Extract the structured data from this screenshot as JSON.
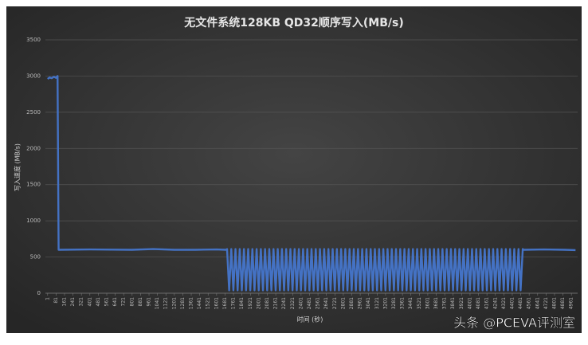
{
  "chart_data": {
    "type": "line",
    "title": "无文件系统128KB QD32顺序写入(MB/s)",
    "y_label": "写入速度 (MB/s)",
    "x_label": "时间 (秒)",
    "watermark": "头条 @PCEVA评测室",
    "color": "#4472c4",
    "grid": true,
    "xlim": [
      -20,
      5020
    ],
    "ylim": [
      0,
      3500
    ],
    "yticks": [
      0,
      500,
      1000,
      1500,
      2000,
      2500,
      3000,
      3500
    ],
    "xticks": [
      1,
      81,
      161,
      241,
      321,
      401,
      481,
      561,
      641,
      721,
      801,
      881,
      961,
      1041,
      1121,
      1201,
      1281,
      1361,
      1441,
      1521,
      1601,
      1681,
      1761,
      1841,
      1921,
      2001,
      2081,
      2161,
      2241,
      2321,
      2401,
      2481,
      2561,
      2641,
      2721,
      2801,
      2881,
      2961,
      3041,
      3121,
      3201,
      3281,
      3361,
      3441,
      3521,
      3601,
      3681,
      3761,
      3841,
      3921,
      4001,
      4081,
      4161,
      4241,
      4321,
      4401,
      4481,
      4561,
      4641,
      4721,
      4801,
      4881,
      4961
    ],
    "x": [
      1,
      20,
      40,
      60,
      80,
      95,
      105,
      400,
      800,
      1000,
      1200,
      1400,
      1600,
      1690,
      1700,
      1720,
      1740,
      1760,
      1780,
      1800,
      1820,
      1840,
      1860,
      1880,
      1900,
      1920,
      1940,
      1960,
      1980,
      2000,
      2020,
      2040,
      2060,
      2080,
      2100,
      2120,
      2140,
      2160,
      2180,
      2200,
      2220,
      2240,
      2260,
      2280,
      2300,
      2320,
      2340,
      2360,
      2380,
      2400,
      2420,
      2440,
      2460,
      2480,
      2500,
      2520,
      2540,
      2560,
      2580,
      2600,
      2620,
      2640,
      2660,
      2680,
      2700,
      2720,
      2740,
      2760,
      2780,
      2800,
      2820,
      2840,
      2860,
      2880,
      2900,
      2920,
      2940,
      2960,
      2980,
      3000,
      3020,
      3040,
      3060,
      3080,
      3100,
      3120,
      3140,
      3160,
      3180,
      3200,
      3220,
      3240,
      3260,
      3280,
      3300,
      3320,
      3340,
      3360,
      3380,
      3400,
      3420,
      3440,
      3460,
      3480,
      3500,
      3520,
      3540,
      3560,
      3580,
      3600,
      3620,
      3640,
      3660,
      3680,
      3700,
      3720,
      3740,
      3760,
      3780,
      3800,
      3820,
      3840,
      3860,
      3880,
      3900,
      3920,
      3940,
      3960,
      3980,
      4000,
      4020,
      4040,
      4060,
      4080,
      4100,
      4120,
      4140,
      4160,
      4180,
      4200,
      4220,
      4240,
      4260,
      4280,
      4300,
      4320,
      4340,
      4360,
      4380,
      4400,
      4420,
      4440,
      4460,
      4480,
      4500,
      4510,
      4700,
      4900,
      5000
    ],
    "values": [
      2960,
      2980,
      2970,
      2990,
      2975,
      3000,
      600,
      605,
      600,
      610,
      600,
      600,
      605,
      600,
      610,
      40,
      610,
      40,
      610,
      40,
      610,
      40,
      610,
      40,
      610,
      40,
      610,
      40,
      610,
      40,
      610,
      40,
      610,
      40,
      610,
      40,
      610,
      40,
      610,
      40,
      610,
      40,
      610,
      40,
      610,
      40,
      610,
      40,
      610,
      40,
      610,
      40,
      610,
      40,
      610,
      40,
      610,
      40,
      610,
      40,
      610,
      40,
      610,
      40,
      610,
      40,
      610,
      40,
      610,
      40,
      610,
      40,
      610,
      40,
      610,
      40,
      610,
      40,
      610,
      40,
      610,
      40,
      610,
      40,
      610,
      40,
      610,
      40,
      610,
      40,
      610,
      40,
      610,
      40,
      610,
      40,
      610,
      40,
      610,
      40,
      610,
      40,
      610,
      40,
      610,
      40,
      610,
      40,
      610,
      40,
      610,
      40,
      610,
      40,
      610,
      40,
      610,
      40,
      610,
      40,
      610,
      40,
      610,
      40,
      610,
      40,
      610,
      40,
      610,
      40,
      610,
      40,
      610,
      40,
      610,
      40,
      610,
      40,
      610,
      40,
      610,
      40,
      610,
      40,
      610,
      40,
      610,
      40,
      610,
      40,
      610,
      40,
      610,
      40,
      610,
      600,
      605,
      600,
      595
    ]
  }
}
